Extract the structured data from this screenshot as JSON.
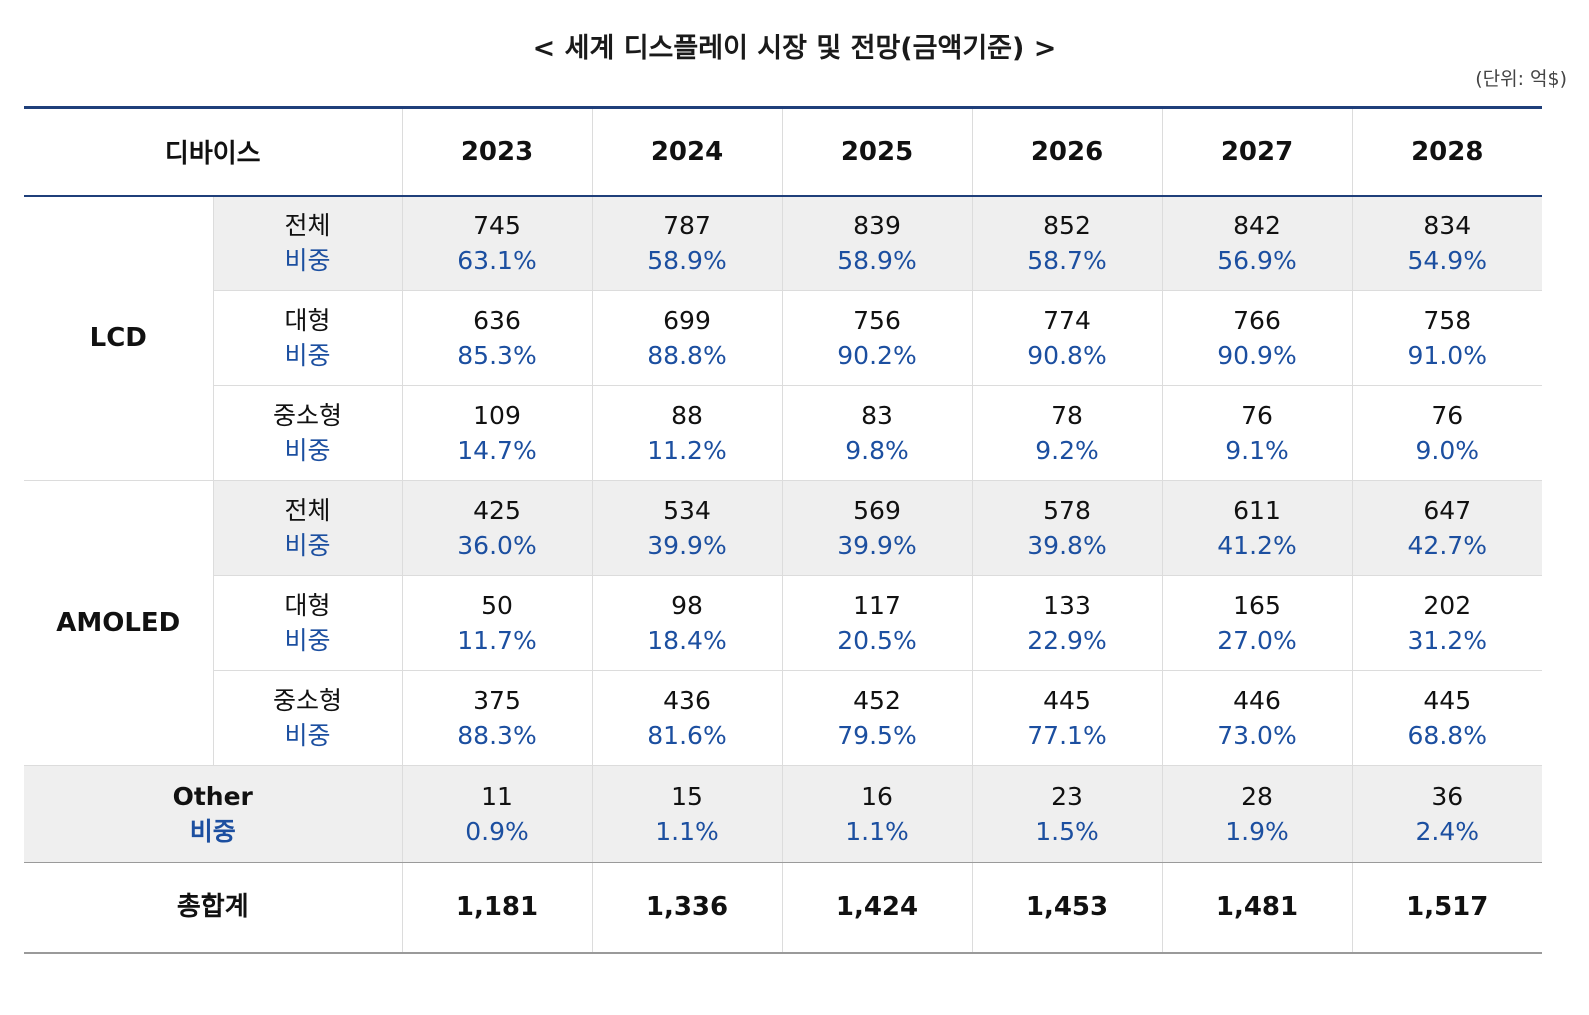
{
  "title": "< 세계 디스플레이 시장 및 전망(금액기준) >",
  "unit": "(단위: 억$)",
  "header": {
    "device": "디바이스",
    "years": [
      "2023",
      "2024",
      "2025",
      "2026",
      "2027",
      "2028"
    ]
  },
  "share_label": "비중",
  "groups": [
    {
      "name": "LCD",
      "rows": [
        {
          "label": "전체",
          "shaded": true,
          "values": [
            "745",
            "787",
            "839",
            "852",
            "842",
            "834"
          ],
          "shares": [
            "63.1%",
            "58.9%",
            "58.9%",
            "58.7%",
            "56.9%",
            "54.9%"
          ]
        },
        {
          "label": "대형",
          "shaded": false,
          "values": [
            "636",
            "699",
            "756",
            "774",
            "766",
            "758"
          ],
          "shares": [
            "85.3%",
            "88.8%",
            "90.2%",
            "90.8%",
            "90.9%",
            "91.0%"
          ]
        },
        {
          "label": "중소형",
          "shaded": false,
          "values": [
            "109",
            "88",
            "83",
            "78",
            "76",
            "76"
          ],
          "shares": [
            "14.7%",
            "11.2%",
            "9.8%",
            "9.2%",
            "9.1%",
            "9.0%"
          ]
        }
      ]
    },
    {
      "name": "AMOLED",
      "rows": [
        {
          "label": "전체",
          "shaded": true,
          "values": [
            "425",
            "534",
            "569",
            "578",
            "611",
            "647"
          ],
          "shares": [
            "36.0%",
            "39.9%",
            "39.9%",
            "39.8%",
            "41.2%",
            "42.7%"
          ]
        },
        {
          "label": "대형",
          "shaded": false,
          "values": [
            "50",
            "98",
            "117",
            "133",
            "165",
            "202"
          ],
          "shares": [
            "11.7%",
            "18.4%",
            "20.5%",
            "22.9%",
            "27.0%",
            "31.2%"
          ]
        },
        {
          "label": "중소형",
          "shaded": false,
          "values": [
            "375",
            "436",
            "452",
            "445",
            "446",
            "445"
          ],
          "shares": [
            "88.3%",
            "81.6%",
            "79.5%",
            "77.1%",
            "73.0%",
            "68.8%"
          ]
        }
      ]
    }
  ],
  "other": {
    "label": "Other",
    "values": [
      "11",
      "15",
      "16",
      "23",
      "28",
      "36"
    ],
    "shares": [
      "0.9%",
      "1.1%",
      "1.1%",
      "1.5%",
      "1.9%",
      "2.4%"
    ]
  },
  "total": {
    "label": "총합계",
    "values": [
      "1,181",
      "1,336",
      "1,424",
      "1,453",
      "1,481",
      "1,517"
    ]
  },
  "colors": {
    "header_rule": "#1f3f7a",
    "share_text": "#1c4fa0",
    "shade": "#efefef"
  }
}
